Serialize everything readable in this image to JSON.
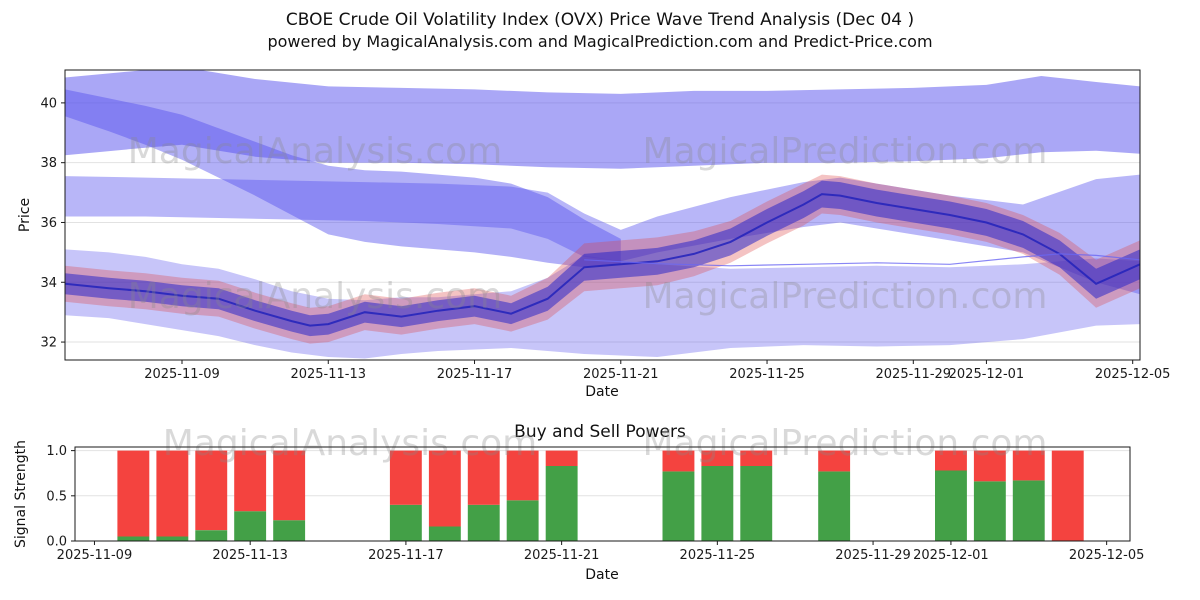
{
  "title": {
    "line1": "CBOE Crude Oil Volatility Index (OVX) Price Wave Trend Analysis (Dec 04 )",
    "line2": "powered by MagicalAnalysis.com and MagicalPrediction.com and Predict-Price.com"
  },
  "watermarks": {
    "analysis": "MagicalAnalysis.com",
    "prediction": "MagicalPrediction.com"
  },
  "chart_data": [
    {
      "type": "area",
      "name": "price_wave_trend",
      "xlabel": "Date",
      "ylabel": "Price",
      "x_unit": "days since 2025-11-06",
      "base_date": "2025-11-06",
      "xlim": [
        -0.2,
        29.2
      ],
      "ylim": [
        31.4,
        41.1
      ],
      "yticks": [
        32,
        34,
        36,
        38,
        40
      ],
      "xticks": [
        "2025-11-09",
        "2025-11-13",
        "2025-11-17",
        "2025-11-21",
        "2025-11-25",
        "2025-11-29",
        "2025-12-01",
        "2025-12-05"
      ],
      "grid": "horizontal",
      "bands": [
        {
          "name": "lower-wide-band",
          "color": "#5550ee",
          "opacity": 0.33,
          "x": [
            -0.2,
            1,
            2,
            3,
            4,
            5,
            6,
            7,
            8,
            9,
            10,
            11,
            12,
            13,
            14,
            15,
            16,
            18,
            20,
            22,
            24,
            26,
            28,
            29.2
          ],
          "upper": [
            35.1,
            35.0,
            34.85,
            34.6,
            34.45,
            34.1,
            33.7,
            33.45,
            33.4,
            33.5,
            33.5,
            33.6,
            33.7,
            34.15,
            34.9,
            34.7,
            34.6,
            34.45,
            34.5,
            34.55,
            34.5,
            34.6,
            34.8,
            34.7
          ],
          "lower": [
            32.9,
            32.8,
            32.6,
            32.4,
            32.2,
            31.9,
            31.65,
            31.5,
            31.45,
            31.6,
            31.7,
            31.75,
            31.8,
            31.7,
            31.6,
            31.55,
            31.5,
            31.8,
            31.9,
            31.85,
            31.9,
            32.1,
            32.55,
            32.6
          ]
        },
        {
          "name": "top-band",
          "color": "#5550ee",
          "opacity": 0.5,
          "x": [
            -0.2,
            2,
            3,
            5,
            7,
            9,
            11,
            13,
            15,
            17,
            19,
            21,
            23,
            25,
            26.5,
            28,
            29.2
          ],
          "upper": [
            40.85,
            41.1,
            41.2,
            40.8,
            40.55,
            40.5,
            40.45,
            40.35,
            40.3,
            40.4,
            40.4,
            40.45,
            40.5,
            40.6,
            40.9,
            40.7,
            40.55
          ],
          "lower": [
            38.25,
            38.5,
            38.6,
            38.2,
            38.0,
            38.0,
            37.95,
            37.85,
            37.8,
            37.9,
            38.0,
            38.0,
            38.05,
            38.15,
            38.35,
            38.4,
            38.3
          ]
        },
        {
          "name": "descending-band",
          "color": "#5550ee",
          "opacity": 0.45,
          "x": [
            -0.2,
            1,
            2,
            3,
            4,
            5,
            6,
            7,
            8,
            9,
            10,
            11,
            12,
            13,
            14,
            15
          ],
          "upper": [
            40.45,
            40.15,
            39.9,
            39.6,
            39.15,
            38.7,
            38.25,
            37.9,
            37.75,
            37.7,
            37.6,
            37.5,
            37.3,
            36.85,
            36.1,
            35.45
          ],
          "lower": [
            39.55,
            39.05,
            38.6,
            38.1,
            37.5,
            36.9,
            36.25,
            35.6,
            35.35,
            35.2,
            35.1,
            35.0,
            34.85,
            34.65,
            34.5,
            34.6
          ]
        },
        {
          "name": "mid-band",
          "color": "#5550ee",
          "opacity": 0.42,
          "x": [
            -0.2,
            2,
            4,
            6,
            8,
            10,
            12,
            13,
            14,
            15,
            16,
            18,
            20,
            21,
            22,
            24,
            26,
            28,
            29.2
          ],
          "upper": [
            37.55,
            37.5,
            37.45,
            37.4,
            37.35,
            37.3,
            37.2,
            37.0,
            36.3,
            35.75,
            36.2,
            36.85,
            37.35,
            37.5,
            37.3,
            36.9,
            36.6,
            37.45,
            37.6
          ],
          "lower": [
            36.2,
            36.2,
            36.15,
            36.1,
            36.05,
            35.95,
            35.8,
            35.45,
            34.85,
            34.7,
            35.0,
            35.45,
            35.85,
            36.0,
            35.8,
            35.4,
            35.0,
            34.0,
            33.6
          ]
        },
        {
          "name": "red-uncertainty-band",
          "color": "#dd4444",
          "opacity": 0.32,
          "x": [
            -0.2,
            1,
            2,
            3,
            4,
            5,
            6,
            6.5,
            7,
            8,
            9,
            10,
            11,
            12,
            13,
            14,
            15,
            16,
            17,
            18,
            19,
            20,
            20.5,
            21,
            22,
            23,
            24,
            25,
            26,
            27,
            28,
            29.2
          ],
          "upper": [
            34.55,
            34.4,
            34.3,
            34.15,
            34.05,
            33.65,
            33.3,
            33.15,
            33.2,
            33.6,
            33.45,
            33.65,
            33.8,
            33.55,
            34.15,
            35.3,
            35.4,
            35.5,
            35.7,
            36.05,
            36.7,
            37.3,
            37.6,
            37.55,
            37.3,
            37.1,
            36.9,
            36.65,
            36.25,
            35.65,
            34.75,
            35.4
          ],
          "lower": [
            33.35,
            33.2,
            33.1,
            32.95,
            32.85,
            32.45,
            32.1,
            31.95,
            32.0,
            32.4,
            32.25,
            32.45,
            32.6,
            32.35,
            32.75,
            33.7,
            33.8,
            33.9,
            34.2,
            34.65,
            35.3,
            35.9,
            36.3,
            36.25,
            36.0,
            35.8,
            35.6,
            35.35,
            34.95,
            34.25,
            33.15,
            33.8
          ]
        },
        {
          "name": "core-dark-band",
          "color": "#2b28c8",
          "opacity": 0.55,
          "x": [
            -0.2,
            1,
            2,
            3,
            4,
            5,
            6,
            6.5,
            7,
            8,
            9,
            10,
            11,
            12,
            13,
            14,
            15,
            16,
            17,
            18,
            19,
            20,
            20.5,
            21,
            22,
            23,
            24,
            25,
            26,
            27,
            28,
            29.2
          ],
          "upper": [
            34.3,
            34.15,
            34.05,
            33.9,
            33.8,
            33.4,
            33.05,
            32.9,
            32.95,
            33.35,
            33.2,
            33.4,
            33.55,
            33.3,
            33.85,
            34.95,
            35.05,
            35.15,
            35.4,
            35.8,
            36.45,
            37.05,
            37.4,
            37.35,
            37.1,
            36.9,
            36.7,
            36.45,
            36.05,
            35.4,
            34.45,
            35.1
          ],
          "lower": [
            33.6,
            33.45,
            33.35,
            33.2,
            33.1,
            32.7,
            32.35,
            32.2,
            32.25,
            32.65,
            32.5,
            32.7,
            32.85,
            32.6,
            33.05,
            34.05,
            34.15,
            34.25,
            34.5,
            34.9,
            35.55,
            36.15,
            36.5,
            36.45,
            36.2,
            36.0,
            35.8,
            35.55,
            35.15,
            34.5,
            33.45,
            34.1
          ]
        }
      ],
      "lines": [
        {
          "name": "core-trend-line",
          "color": "#2222bb",
          "width": 2,
          "opacity": 0.85,
          "x": [
            -0.2,
            1,
            2,
            3,
            4,
            5,
            6,
            6.5,
            7,
            8,
            9,
            10,
            11,
            12,
            13,
            14,
            15,
            16,
            17,
            18,
            19,
            20,
            20.5,
            21,
            22,
            23,
            24,
            25,
            26,
            27,
            28,
            29.2
          ],
          "y": [
            33.95,
            33.8,
            33.7,
            33.55,
            33.45,
            33.05,
            32.7,
            32.55,
            32.6,
            33.0,
            32.85,
            33.05,
            33.2,
            32.95,
            33.45,
            34.5,
            34.6,
            34.7,
            34.95,
            35.35,
            36.0,
            36.6,
            36.95,
            36.9,
            36.65,
            36.45,
            36.25,
            36.0,
            35.6,
            34.95,
            33.95,
            34.6
          ],
          "y_unit": "price"
        },
        {
          "name": "flat-strand-line",
          "color": "#6a66f2",
          "width": 1.2,
          "opacity": 0.8,
          "x": [
            14,
            16,
            18,
            20,
            22,
            24,
            26,
            27,
            28,
            29.2
          ],
          "y": [
            34.75,
            34.62,
            34.55,
            34.6,
            34.65,
            34.6,
            34.85,
            34.95,
            34.9,
            34.75
          ],
          "y_unit": "price"
        }
      ]
    },
    {
      "type": "bar",
      "name": "buy_sell_powers",
      "title": "Buy and Sell Powers",
      "xlabel": "Date",
      "ylabel": "Signal Strength",
      "base_date": "2025-11-06",
      "xlim": [
        2.5,
        29.6
      ],
      "ylim": [
        0,
        1.04
      ],
      "yticks": [
        0,
        0.5,
        1
      ],
      "ytick_labels": [
        "0.0",
        "0.5",
        "1.0"
      ],
      "xticks": [
        "2025-11-09",
        "2025-11-13",
        "2025-11-17",
        "2025-11-21",
        "2025-11-25",
        "2025-11-29",
        "2025-12-01",
        "2025-12-05"
      ],
      "grid": "horizontal",
      "bar_width_days": 0.82,
      "colors": {
        "buy": "#43a047",
        "sell": "#f4433f"
      },
      "bars": [
        {
          "date": "2025-11-10",
          "buy": 0.05,
          "sell": 0.95
        },
        {
          "date": "2025-11-11",
          "buy": 0.05,
          "sell": 0.95
        },
        {
          "date": "2025-11-12",
          "buy": 0.12,
          "sell": 0.88
        },
        {
          "date": "2025-11-13",
          "buy": 0.33,
          "sell": 0.67
        },
        {
          "date": "2025-11-14",
          "buy": 0.23,
          "sell": 0.77
        },
        {
          "date": "2025-11-17",
          "buy": 0.4,
          "sell": 0.6
        },
        {
          "date": "2025-11-18",
          "buy": 0.16,
          "sell": 0.84
        },
        {
          "date": "2025-11-19",
          "buy": 0.4,
          "sell": 0.6
        },
        {
          "date": "2025-11-20",
          "buy": 0.45,
          "sell": 0.55
        },
        {
          "date": "2025-11-21",
          "buy": 0.83,
          "sell": 0.17
        },
        {
          "date": "2025-11-24",
          "buy": 0.77,
          "sell": 0.23
        },
        {
          "date": "2025-11-25",
          "buy": 0.83,
          "sell": 0.17
        },
        {
          "date": "2025-11-26",
          "buy": 0.83,
          "sell": 0.17
        },
        {
          "date": "2025-11-28",
          "buy": 0.77,
          "sell": 0.23
        },
        {
          "date": "2025-12-01",
          "buy": 0.78,
          "sell": 0.22
        },
        {
          "date": "2025-12-02",
          "buy": 0.66,
          "sell": 0.34
        },
        {
          "date": "2025-12-03",
          "buy": 0.67,
          "sell": 0.33
        },
        {
          "date": "2025-12-04",
          "buy": 0.0,
          "sell": 1.0
        }
      ]
    }
  ]
}
